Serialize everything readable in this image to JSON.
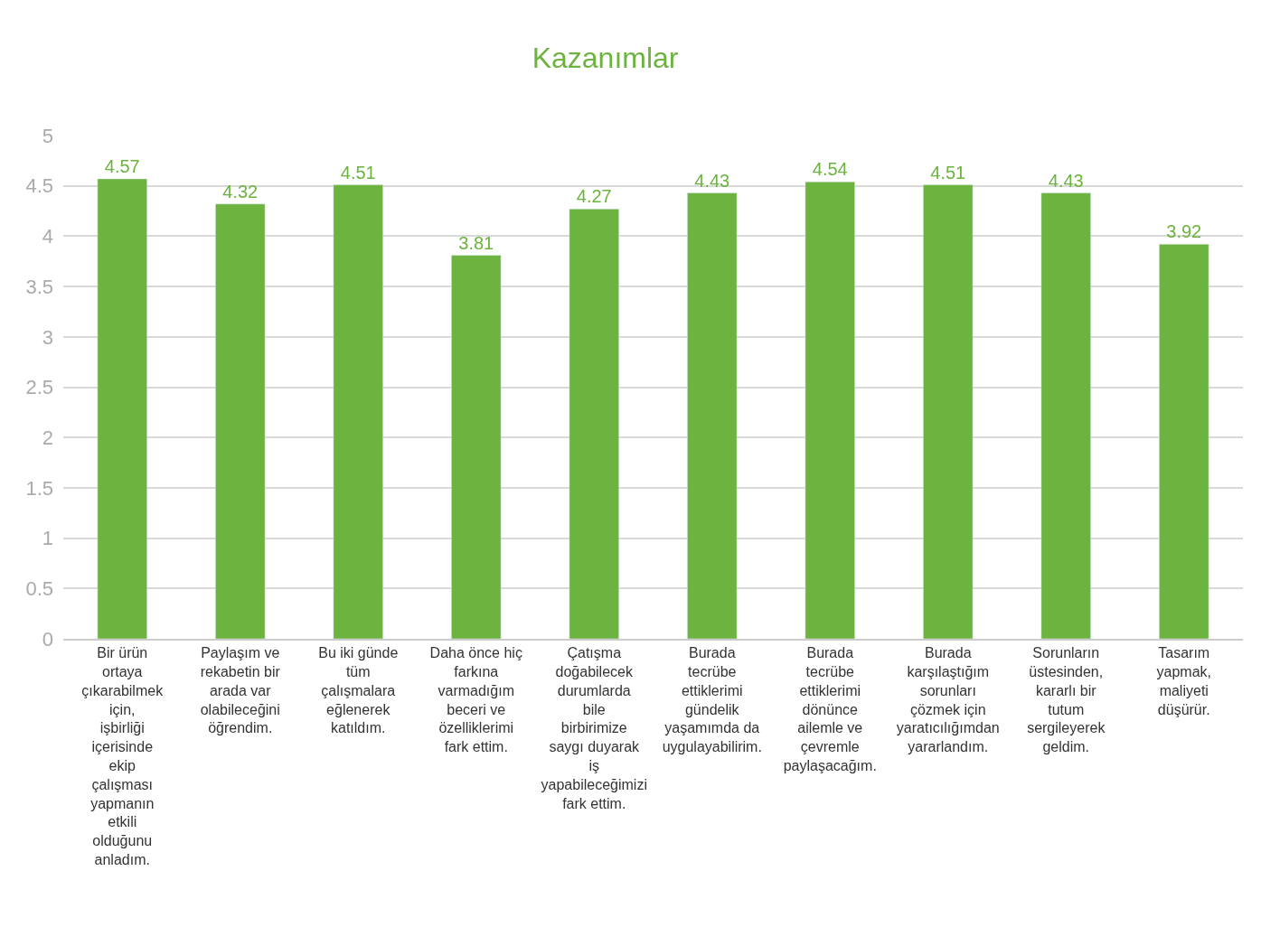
{
  "chart_data": {
    "type": "bar",
    "title": "Kazanımlar",
    "categories": [
      "Bir ürün ortaya çıkarabilmek için, işbirliği içerisinde ekip çalışması yapmanın etkili olduğunu anladım.",
      "Paylaşım ve rekabetin bir arada var olabileceğini öğrendim.",
      "Bu iki günde tüm çalışmalara eğlenerek katıldım.",
      "Daha önce hiç farkına varmadığım beceri ve özelliklerimi fark ettim.",
      "Çatışma doğabilecek durumlarda bile birbirimize saygı duyarak iş yapabileceğimizi fark ettim.",
      "Burada tecrübe ettiklerimi gündelik yaşamımda da uygulayabilirim.",
      "Burada tecrübe ettiklerimi dönünce ailemle ve çevremle paylaşacağım.",
      "Burada karşılaştığım sorunları çözmek için yaratıcılığımdan yararlandım.",
      "Sorunların üstesinden, kararlı bir tutum sergileyerek geldim.",
      "Tasarım yapmak, maliyeti düşürür."
    ],
    "values": [
      4.57,
      4.32,
      4.51,
      3.81,
      4.27,
      4.43,
      4.54,
      4.51,
      4.43,
      3.92
    ],
    "color": "#6cb33f",
    "data_labels": true,
    "ylim": [
      0,
      5
    ],
    "yticks": [
      0,
      0.5,
      1,
      1.5,
      2,
      2.5,
      3,
      3.5,
      4,
      4.5,
      5
    ],
    "grid": "y",
    "legend": false
  }
}
